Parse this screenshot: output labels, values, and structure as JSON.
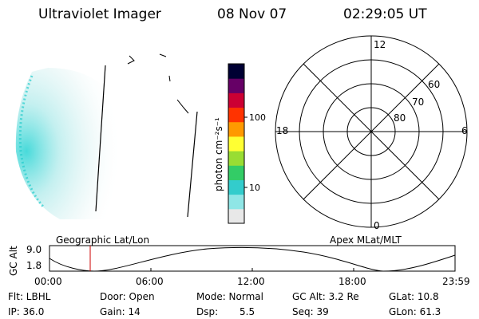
{
  "header": {
    "title": "Ultraviolet Imager",
    "date": "08 Nov 07",
    "time": "02:29:05 UT"
  },
  "colorbar": {
    "unit_label": "photon cm⁻²s⁻¹",
    "ticks": [
      "100",
      "10"
    ],
    "scale": "log",
    "colors": [
      "#e8e8e8",
      "#8fe6e6",
      "#33cccc",
      "#33cc66",
      "#99dd33",
      "#ffff33",
      "#ff9900",
      "#ff3300",
      "#cc0033",
      "#660066",
      "#000033"
    ]
  },
  "polar_plot": {
    "mlt_labels": [
      "12",
      "18",
      "6",
      "0"
    ],
    "lat_labels": [
      "60",
      "70",
      "80"
    ]
  },
  "orbit_plot": {
    "title_left": "Geographic Lat/Lon",
    "title_right": "Apex MLat/MLT",
    "y_axis_label": "GC Alt",
    "y_ticks": [
      "9.0",
      "1.8"
    ],
    "x_ticks": [
      "00:00",
      "06:00",
      "12:00",
      "18:00",
      "23:59"
    ],
    "current_time_marker_color": "#cc0000"
  },
  "status": {
    "flt": "Flt: LBHL",
    "ip": "IP: 36.0",
    "door": "Door: Open",
    "gain": "Gain: 14",
    "mode": "Mode: Normal",
    "dsp_label": "Dsp:",
    "dsp_value": "5.5",
    "gc_alt": "GC Alt: 3.2 Re",
    "seq": "Seq: 39",
    "glat": "GLat: 10.8",
    "glon": "GLon: 61.3"
  }
}
